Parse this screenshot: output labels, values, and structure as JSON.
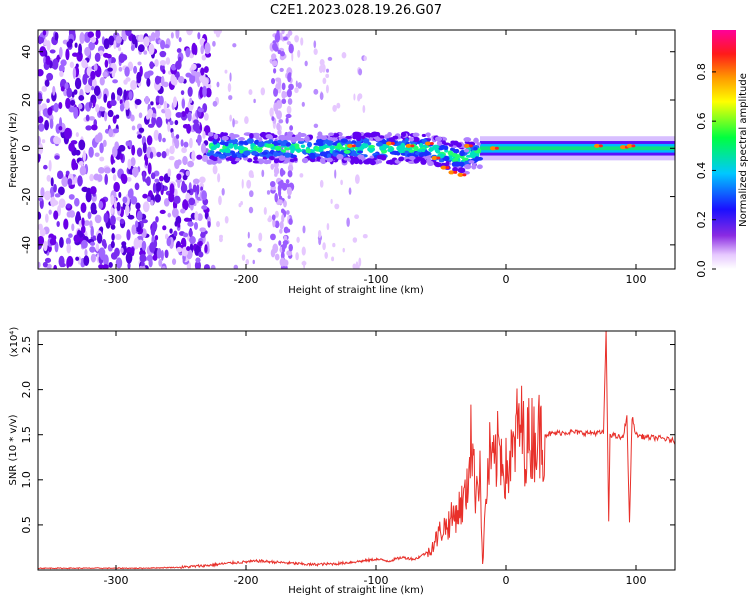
{
  "title": "C2E1.2023.028.19.26.G07",
  "chart_data": [
    {
      "type": "heatmap",
      "xlabel": "Height of straight line (km)",
      "ylabel": "Frequency (Hz)",
      "xlim": [
        -360,
        130
      ],
      "ylim": [
        -50,
        49
      ],
      "xticks": [
        -300,
        -200,
        -100,
        0,
        100
      ],
      "yticks": [
        -40,
        -20,
        0,
        20,
        40
      ],
      "colorbar": {
        "label": "Normalized spectral amplitude",
        "range": [
          0,
          0.97
        ],
        "ticks": [
          0.0,
          0.2,
          0.4,
          0.6,
          0.8
        ],
        "colormap": "rainbow (white-violet-purple-blue-cyan-green-yellow-orange-red-magenta)"
      },
      "features": {
        "noise_region_x": [
          -360,
          -228
        ],
        "noise_stripe_x": [
          -180,
          -165
        ],
        "signal_band_start_x": -228,
        "signal_band_center_hz": 0,
        "signal_band_halfwidth_hz": [
          6,
          3
        ],
        "low_altitude_drift_x": [
          -60,
          -30
        ],
        "low_altitude_drift_hz": [
          -5,
          -12
        ],
        "clean_band_x": [
          -20,
          130
        ]
      }
    },
    {
      "type": "line",
      "xlabel": "Height of straight line (km)",
      "ylabel": "SNR (10 * v/v)",
      "multiplier": "(x10⁴)",
      "xlim": [
        -360,
        130
      ],
      "ylim": [
        0,
        2.65
      ],
      "xticks": [
        -300,
        -200,
        -100,
        0,
        100
      ],
      "yticks": [
        0.5,
        1.0,
        1.5,
        2.0,
        2.5
      ],
      "ytick_labels": [
        "0.5",
        "1.0",
        "1.5",
        "2.0",
        "2.5"
      ],
      "series": [
        {
          "color": "#e8302a",
          "x": [
            -360,
            -320,
            -280,
            -250,
            -230,
            -210,
            -190,
            -170,
            -150,
            -130,
            -110,
            -100,
            -90,
            -80,
            -70,
            -60,
            -55,
            -50,
            -45,
            -40,
            -35,
            -30,
            -27,
            -24,
            -22,
            -20,
            -18,
            -15,
            -12,
            -10,
            -5,
            0,
            5,
            10,
            15,
            20,
            30,
            40,
            50,
            60,
            70,
            75,
            77,
            79,
            80,
            82,
            85,
            90,
            93,
            95,
            97,
            100,
            105,
            110,
            120,
            130
          ],
          "y": [
            0.02,
            0.02,
            0.02,
            0.03,
            0.05,
            0.08,
            0.1,
            0.08,
            0.06,
            0.07,
            0.1,
            0.12,
            0.1,
            0.14,
            0.12,
            0.2,
            0.3,
            0.45,
            0.5,
            0.6,
            0.7,
            0.85,
            1.6,
            0.9,
            1.0,
            1.2,
            0.05,
            0.9,
            1.3,
            1.1,
            1.4,
            1.1,
            1.25,
            1.65,
            1.4,
            1.48,
            1.5,
            1.52,
            1.53,
            1.52,
            1.52,
            1.52,
            2.65,
            0.55,
            1.5,
            1.5,
            1.48,
            1.46,
            1.72,
            0.5,
            1.7,
            1.5,
            1.48,
            1.47,
            1.46,
            1.43
          ]
        }
      ]
    }
  ]
}
